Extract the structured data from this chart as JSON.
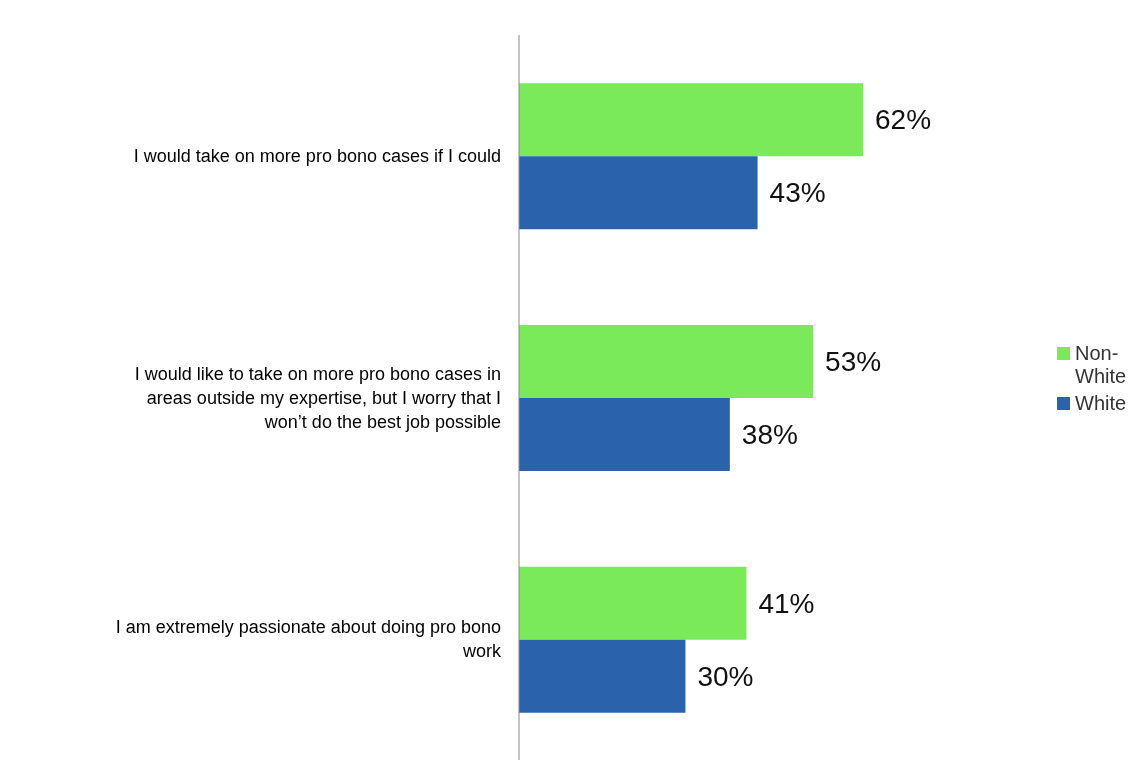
{
  "chart_data": {
    "type": "bar",
    "orientation": "horizontal",
    "categories": [
      "I would take on more pro bono cases if I could",
      "I would like to take on more pro bono cases in areas outside my expertise, but I worry that I won’t do the best job possible",
      "I am extremely passionate about doing pro bono work"
    ],
    "series": [
      {
        "name": "Non-White",
        "color": "#7aea5a",
        "values": [
          62,
          53,
          41
        ],
        "value_labels": [
          "62%",
          "53%",
          "41%"
        ]
      },
      {
        "name": "White",
        "color": "#2a62ac",
        "values": [
          43,
          38,
          30
        ],
        "value_labels": [
          "43%",
          "38%",
          "30%"
        ]
      }
    ],
    "legend": "right"
  }
}
